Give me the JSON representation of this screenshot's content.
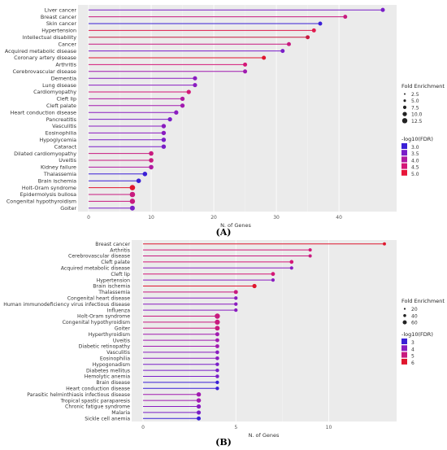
{
  "chart_data": [
    {
      "type": "lollipop",
      "panel": "(A)",
      "xlabel": "N. of Genes",
      "xlim": [
        0,
        47
      ],
      "xticks": [
        0,
        10,
        20,
        30,
        40
      ],
      "size_legend_title": "Fold Enrichment",
      "size_legend_values": [
        "2.5",
        "5.0",
        "7.5",
        "10.0",
        "12.5"
      ],
      "color_legend_title": "-log10(FDR)",
      "color_legend_values": [
        "3.0",
        "3.5",
        "4.0",
        "4.5",
        "5.0"
      ],
      "color_legend_colors": [
        "#3a1fd6",
        "#7a1ec8",
        "#b01aa0",
        "#d41777",
        "#e8163a"
      ],
      "points": [
        {
          "label": "Liver cancer",
          "value": 47,
          "fold": 3.5,
          "color": "#7a1ec8"
        },
        {
          "label": "Breast cancer",
          "value": 41,
          "fold": 3.0,
          "color": "#c81a7f"
        },
        {
          "label": "Skin cancer",
          "value": 37,
          "fold": 3.0,
          "color": "#3a1fd6"
        },
        {
          "label": "Hypertension",
          "value": 36,
          "fold": 3.2,
          "color": "#e01a4d"
        },
        {
          "label": "Intellectual disability",
          "value": 35,
          "fold": 3.2,
          "color": "#c81a40"
        },
        {
          "label": "Cancer",
          "value": 32,
          "fold": 3.2,
          "color": "#c81a7f"
        },
        {
          "label": "Acquired metabolic disease",
          "value": 31,
          "fold": 3.2,
          "color": "#7a1ec8"
        },
        {
          "label": "Coronary artery disease",
          "value": 28,
          "fold": 3.5,
          "color": "#e0162e"
        },
        {
          "label": "Arthritis",
          "value": 25,
          "fold": 3.5,
          "color": "#d41777"
        },
        {
          "label": "Cerebrovascular disease",
          "value": 25,
          "fold": 3.5,
          "color": "#a11ab0"
        },
        {
          "label": "Dementia",
          "value": 17,
          "fold": 4.0,
          "color": "#8a1cc0"
        },
        {
          "label": "Lung disease",
          "value": 17,
          "fold": 4.0,
          "color": "#8a1cc0"
        },
        {
          "label": "Cardiomyopathy",
          "value": 16,
          "fold": 4.5,
          "color": "#d41777"
        },
        {
          "label": "Cleft lip",
          "value": 15,
          "fold": 4.5,
          "color": "#b01aa0"
        },
        {
          "label": "Cleft palate",
          "value": 15,
          "fold": 4.5,
          "color": "#a11ab0"
        },
        {
          "label": "Heart conduction disease",
          "value": 14,
          "fold": 4.5,
          "color": "#8a1cc0"
        },
        {
          "label": "Pancreatitis",
          "value": 13,
          "fold": 4.5,
          "color": "#7a1ec8"
        },
        {
          "label": "Vasculitis",
          "value": 12,
          "fold": 5.0,
          "color": "#8a1cc0"
        },
        {
          "label": "Eosinophilia",
          "value": 12,
          "fold": 5.0,
          "color": "#8a1cc0"
        },
        {
          "label": "Hypoglycemia",
          "value": 12,
          "fold": 5.0,
          "color": "#7a1ec8"
        },
        {
          "label": "Cataract",
          "value": 12,
          "fold": 5.0,
          "color": "#7a1ec8"
        },
        {
          "label": "Dilated cardiomyopathy",
          "value": 10,
          "fold": 6.0,
          "color": "#c81a7f"
        },
        {
          "label": "Uveitis",
          "value": 10,
          "fold": 6.0,
          "color": "#c81a7f"
        },
        {
          "label": "Kidney failure",
          "value": 10,
          "fold": 6.0,
          "color": "#b01aa0"
        },
        {
          "label": "Thalassemia",
          "value": 9,
          "fold": 6.0,
          "color": "#3a1fd6"
        },
        {
          "label": "Brain ischemia",
          "value": 8,
          "fold": 6.0,
          "color": "#3a1fd6"
        },
        {
          "label": "Holt-Oram syndrome",
          "value": 7,
          "fold": 12.0,
          "color": "#e0162e"
        },
        {
          "label": "Epidermolysis bullosa",
          "value": 7,
          "fold": 12.0,
          "color": "#c81a7f"
        },
        {
          "label": "Congenital hypothyroidism",
          "value": 7,
          "fold": 11.0,
          "color": "#c81a7f"
        },
        {
          "label": "Goiter",
          "value": 7,
          "fold": 8.0,
          "color": "#7a1ec8"
        }
      ]
    },
    {
      "type": "lollipop",
      "panel": "(B)",
      "xlabel": "N. of Genes",
      "xlim": [
        0,
        13
      ],
      "xticks": [
        0,
        5,
        10
      ],
      "size_legend_title": "Fold Enrichment",
      "size_legend_values": [
        "20",
        "40",
        "60"
      ],
      "color_legend_title": "-log10(FDR)",
      "color_legend_values": [
        "3",
        "4",
        "5",
        "6"
      ],
      "color_legend_colors": [
        "#3a1fd6",
        "#8a1cc0",
        "#c81a7f",
        "#e0162e"
      ],
      "points": [
        {
          "label": "Breast cancer",
          "value": 13,
          "fold": 8,
          "color": "#e0162e"
        },
        {
          "label": "Arthritis",
          "value": 9,
          "fold": 10,
          "color": "#d41777"
        },
        {
          "label": "Cerebrovascular disease",
          "value": 9,
          "fold": 10,
          "color": "#c81a7f"
        },
        {
          "label": "Cleft palate",
          "value": 8,
          "fold": 20,
          "color": "#d41777"
        },
        {
          "label": "Acquired metabolic disease",
          "value": 8,
          "fold": 12,
          "color": "#8a1cc0"
        },
        {
          "label": "Cleft lip",
          "value": 7,
          "fold": 22,
          "color": "#d41777"
        },
        {
          "label": "Hypertension",
          "value": 7,
          "fold": 12,
          "color": "#8a1cc0"
        },
        {
          "label": "Brain ischemia",
          "value": 6,
          "fold": 30,
          "color": "#e0162e"
        },
        {
          "label": "Thalassemia",
          "value": 5,
          "fold": 25,
          "color": "#c81a7f"
        },
        {
          "label": "Congenital heart disease",
          "value": 5,
          "fold": 14,
          "color": "#8a1cc0"
        },
        {
          "label": "Human immunodeficiency virus infectious disease",
          "value": 5,
          "fold": 14,
          "color": "#8a1cc0"
        },
        {
          "label": "Influenza",
          "value": 5,
          "fold": 14,
          "color": "#8a1cc0"
        },
        {
          "label": "Holt-Oram syndrome",
          "value": 4,
          "fold": 60,
          "color": "#c81a7f"
        },
        {
          "label": "Congenital hypothyroidism",
          "value": 4,
          "fold": 55,
          "color": "#c81a7f"
        },
        {
          "label": "Goiter",
          "value": 4,
          "fold": 45,
          "color": "#c81a7f"
        },
        {
          "label": "Hyperthyroidism",
          "value": 4,
          "fold": 25,
          "color": "#a11ab0"
        },
        {
          "label": "Uveitis",
          "value": 4,
          "fold": 22,
          "color": "#a11ab0"
        },
        {
          "label": "Diabetic retinopathy",
          "value": 4,
          "fold": 22,
          "color": "#a11ab0"
        },
        {
          "label": "Vasculitis",
          "value": 4,
          "fold": 18,
          "color": "#8a1cc0"
        },
        {
          "label": "Eosinophilia",
          "value": 4,
          "fold": 18,
          "color": "#8a1cc0"
        },
        {
          "label": "Hypogonadism",
          "value": 4,
          "fold": 16,
          "color": "#7a1ec8"
        },
        {
          "label": "Diabetes mellitus",
          "value": 4,
          "fold": 16,
          "color": "#7a1ec8"
        },
        {
          "label": "Hemolytic anemia",
          "value": 4,
          "fold": 16,
          "color": "#7a1ec8"
        },
        {
          "label": "Brain disease",
          "value": 4,
          "fold": 14,
          "color": "#3a1fd6"
        },
        {
          "label": "Heart conduction disease",
          "value": 4,
          "fold": 14,
          "color": "#3a1fd6"
        },
        {
          "label": "Parasitic helminthiasis infectious disease",
          "value": 3,
          "fold": 35,
          "color": "#a11ab0"
        },
        {
          "label": "Tropical spastic paraparesis",
          "value": 3,
          "fold": 35,
          "color": "#a11ab0"
        },
        {
          "label": "Chronic fatigue syndrome",
          "value": 3,
          "fold": 30,
          "color": "#8a1cc0"
        },
        {
          "label": "Malaria",
          "value": 3,
          "fold": 28,
          "color": "#7a1ec8"
        },
        {
          "label": "Sickle cell anemia",
          "value": 3,
          "fold": 25,
          "color": "#3a1fd6"
        }
      ]
    }
  ]
}
